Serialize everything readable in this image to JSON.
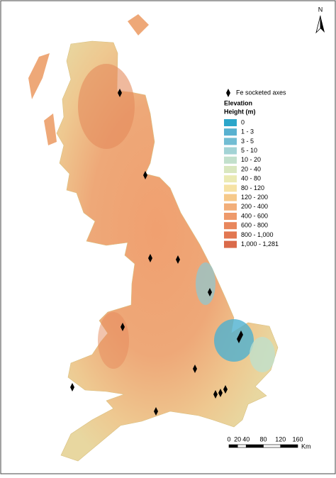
{
  "north_arrow": "N",
  "legend": {
    "finds_label": "Fe socketed axes",
    "title": "Elevation",
    "subtitle": "Height (m)",
    "classes": [
      {
        "label": "0",
        "color": "#2ba6ca"
      },
      {
        "label": "1 - 3",
        "color": "#58b1d0"
      },
      {
        "label": "3 - 5",
        "color": "#72bdd3"
      },
      {
        "label": "5 - 10",
        "color": "#a3d3d5"
      },
      {
        "label": "10 - 20",
        "color": "#c2e0cc"
      },
      {
        "label": "20 - 40",
        "color": "#d9e7bf"
      },
      {
        "label": "40 - 80",
        "color": "#ebeab4"
      },
      {
        "label": "80 - 120",
        "color": "#f6e2a5"
      },
      {
        "label": "120 - 200",
        "color": "#f6c98a"
      },
      {
        "label": "200 - 400",
        "color": "#f2ae79"
      },
      {
        "label": "400 - 600",
        "color": "#ee9a6b"
      },
      {
        "label": "600 - 800",
        "color": "#e8875d"
      },
      {
        "label": "800 - 1,000",
        "color": "#e27751"
      },
      {
        "label": "1,000 - 1,281",
        "color": "#da6a4a"
      }
    ]
  },
  "scale_bar": {
    "ticks": [
      0,
      20,
      40,
      80,
      120,
      160
    ],
    "unit": "Km"
  }
}
